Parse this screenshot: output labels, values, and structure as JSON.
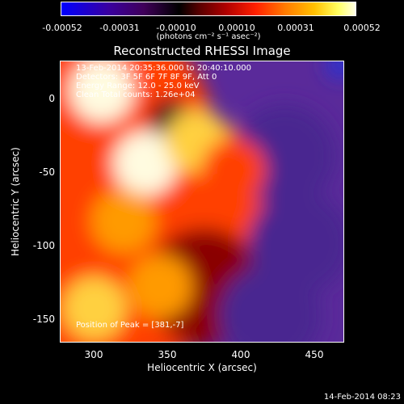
{
  "chart_data": {
    "type": "heatmap",
    "title": "Reconstructed RHESSI Image",
    "xlabel": "Heliocentric X (arcsec)",
    "ylabel": "Heliocentric Y (arcsec)",
    "xlim": [
      277,
      470
    ],
    "ylim": [
      -168,
      25
    ],
    "xticks": [
      "300",
      "350",
      "400",
      "450"
    ],
    "yticks": [
      "0",
      "-50",
      "-100",
      "-150"
    ],
    "colorbar": {
      "ticks": [
        "-0.00052",
        "-0.00031",
        "-0.00010",
        "0.00010",
        "0.00031",
        "0.00052"
      ],
      "units": "(photons cm⁻² s⁻¹ asec⁻²)",
      "range": [
        -0.00052,
        0.00052
      ]
    },
    "annotations": {
      "time_range": "13-Feb-2014 20:35:36.000 to 20:40:10.000",
      "detectors": "Detectors: 3F 5F 6F 7F 8F 9F, Att 0",
      "energy": "Energy Range: 12.0 - 25.0 keV",
      "clean": "Clean    Total counts: 1.26e+04",
      "peak": "Position of Peak = [381,-7]"
    },
    "bright_regions": [
      {
        "x": 305,
        "y": 5,
        "level": 0.95
      },
      {
        "x": 335,
        "y": -45,
        "level": 0.98
      },
      {
        "x": 370,
        "y": -30,
        "level": 0.9
      },
      {
        "x": 320,
        "y": -85,
        "level": 0.85
      },
      {
        "x": 300,
        "y": -145,
        "level": 0.9
      },
      {
        "x": 345,
        "y": -130,
        "level": 0.8
      },
      {
        "x": 395,
        "y": -50,
        "level": 0.7
      }
    ],
    "dark_regions": [
      {
        "x": 352,
        "y": -15,
        "level": 0.1
      },
      {
        "x": 440,
        "y": -100,
        "level": 0.15
      },
      {
        "x": 430,
        "y": -40,
        "level": 0.2
      },
      {
        "x": 420,
        "y": -150,
        "level": 0.2
      }
    ],
    "peak_position": [
      381,
      -7
    ]
  },
  "footer": {
    "date": "14-Feb-2014 08:23"
  }
}
